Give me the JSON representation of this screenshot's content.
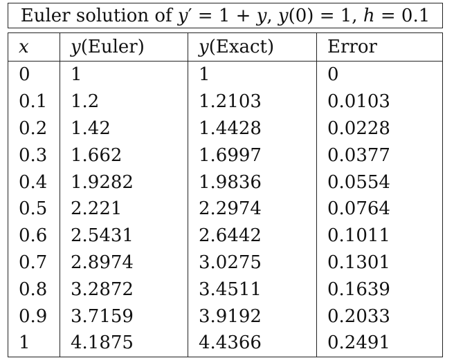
{
  "caption": {
    "prefix": "Euler solution of ",
    "y": "y",
    "prime_eq": "′ = 1 + ",
    "y2": "y",
    "comma1": ", ",
    "y3": "y",
    "init": "(0) = 1, ",
    "h": "h",
    "step": " = 0.1"
  },
  "headers": {
    "x": "x",
    "y_sym": "y",
    "euler": "(Euler)",
    "exact": "(Exact)",
    "error": "Error"
  },
  "rows": [
    {
      "x": "0",
      "euler": "1",
      "exact": "1",
      "error": "0"
    },
    {
      "x": "0.1",
      "euler": "1.2",
      "exact": "1.2103",
      "error": "0.0103"
    },
    {
      "x": "0.2",
      "euler": "1.42",
      "exact": "1.4428",
      "error": "0.0228"
    },
    {
      "x": "0.3",
      "euler": "1.662",
      "exact": "1.6997",
      "error": "0.0377"
    },
    {
      "x": "0.4",
      "euler": "1.9282",
      "exact": "1.9836",
      "error": "0.0554"
    },
    {
      "x": "0.5",
      "euler": "2.221",
      "exact": "2.2974",
      "error": "0.0764"
    },
    {
      "x": "0.6",
      "euler": "2.5431",
      "exact": "2.6442",
      "error": "0.1011"
    },
    {
      "x": "0.7",
      "euler": "2.8974",
      "exact": "3.0275",
      "error": "0.1301"
    },
    {
      "x": "0.8",
      "euler": "3.2872",
      "exact": "3.4511",
      "error": "0.1639"
    },
    {
      "x": "0.9",
      "euler": "3.7159",
      "exact": "3.9192",
      "error": "0.2033"
    },
    {
      "x": "1",
      "euler": "4.1875",
      "exact": "4.4366",
      "error": "0.2491"
    }
  ]
}
